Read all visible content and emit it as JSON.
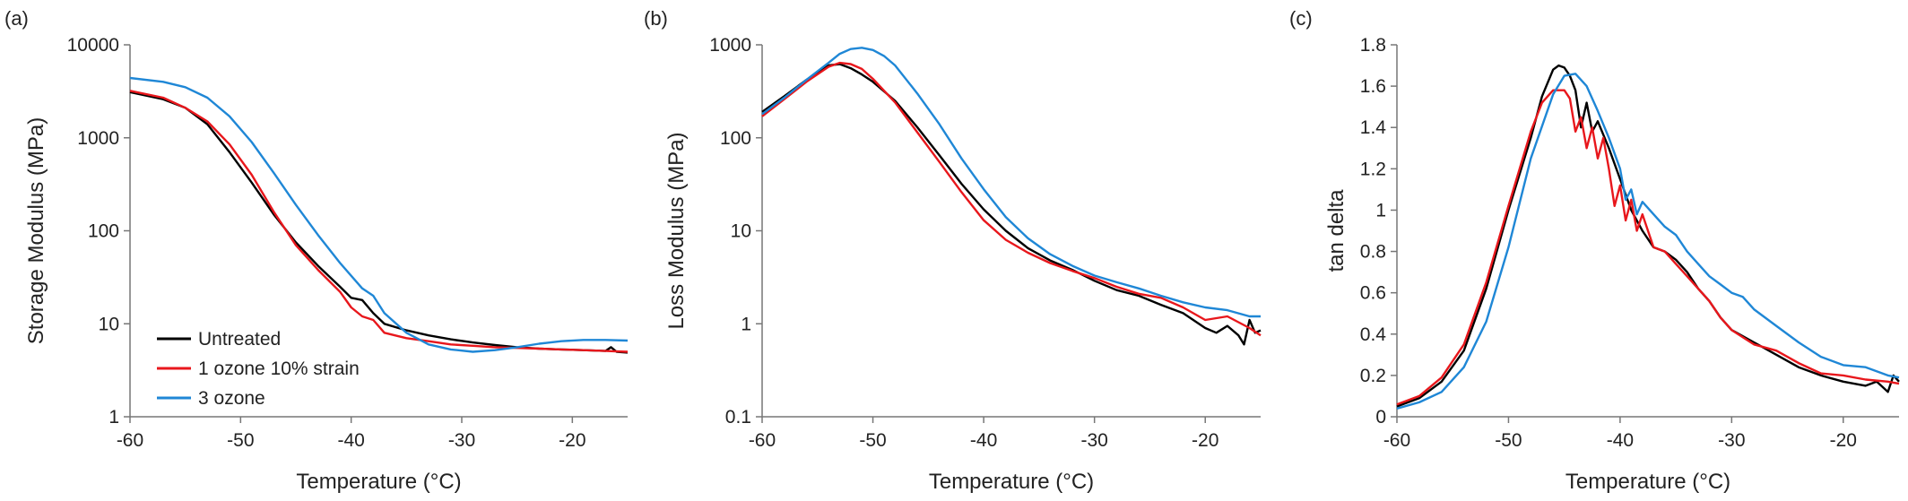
{
  "colors": {
    "Untreated": "#000000",
    "1 ozone 10% strain": "#e8171c",
    "3 ozone": "#1f87d6"
  },
  "chart_data": [
    {
      "type": "line",
      "panel_label": "(a)",
      "xlabel": "Temperature (°C)",
      "ylabel": "Storage Modulus (MPa)",
      "xlim": [
        -60,
        -15
      ],
      "ylim": [
        1,
        10000
      ],
      "yscale": "log",
      "xticks": [
        -60,
        -50,
        -40,
        -30,
        -20
      ],
      "yticks": [
        1,
        10,
        100,
        1000,
        10000
      ],
      "grid": false,
      "legend": {
        "placement": "bottom-left",
        "entries": [
          "Untreated",
          "1 ozone 10% strain",
          "3 ozone"
        ]
      },
      "series": [
        {
          "name": "Untreated",
          "x": [
            -60,
            -57,
            -55,
            -53,
            -51,
            -49,
            -47,
            -45,
            -43,
            -41,
            -40,
            -39,
            -38,
            -37,
            -35,
            -33,
            -31,
            -29,
            -27,
            -25,
            -23,
            -21,
            -19,
            -17,
            -16.5,
            -16,
            -15
          ],
          "y": [
            3100,
            2600,
            2100,
            1400,
            700,
            330,
            150,
            75,
            42,
            25,
            19,
            18,
            13,
            10,
            8.5,
            7.5,
            6.8,
            6.3,
            5.9,
            5.6,
            5.4,
            5.3,
            5.2,
            5.1,
            5.6,
            5.0,
            4.9
          ]
        },
        {
          "name": "1 ozone 10% strain",
          "x": [
            -60,
            -57,
            -55,
            -53,
            -51,
            -49,
            -47,
            -45,
            -43,
            -41,
            -40,
            -39,
            -38,
            -37,
            -35,
            -33,
            -31,
            -29,
            -27,
            -25,
            -23,
            -21,
            -19,
            -17,
            -15
          ],
          "y": [
            3200,
            2700,
            2100,
            1500,
            850,
            400,
            160,
            70,
            38,
            22,
            15,
            12,
            11,
            8,
            7,
            6.5,
            6,
            5.8,
            5.6,
            5.5,
            5.4,
            5.3,
            5.2,
            5.1,
            5.0
          ]
        },
        {
          "name": "3 ozone",
          "x": [
            -60,
            -57,
            -55,
            -53,
            -51,
            -49,
            -47,
            -45,
            -43,
            -41,
            -39,
            -38,
            -37,
            -35,
            -33,
            -31,
            -29,
            -27,
            -25,
            -23,
            -21,
            -19,
            -17,
            -15
          ],
          "y": [
            4400,
            4000,
            3500,
            2700,
            1700,
            900,
            420,
            190,
            90,
            45,
            24,
            20,
            13,
            8,
            6,
            5.3,
            5.0,
            5.2,
            5.6,
            6.1,
            6.5,
            6.7,
            6.7,
            6.6
          ]
        }
      ]
    },
    {
      "type": "line",
      "panel_label": "(b)",
      "xlabel": "Temperature (°C)",
      "ylabel": "Loss Modulus (MPa)",
      "xlim": [
        -60,
        -15
      ],
      "ylim": [
        0.1,
        1000
      ],
      "yscale": "log",
      "xticks": [
        -60,
        -50,
        -40,
        -30,
        -20
      ],
      "yticks": [
        0.1,
        1,
        10,
        100,
        1000
      ],
      "grid": false,
      "series": [
        {
          "name": "Untreated",
          "x": [
            -60,
            -58,
            -56,
            -54,
            -53,
            -52,
            -51,
            -50,
            -48,
            -46,
            -44,
            -42,
            -40,
            -38,
            -36,
            -34,
            -32,
            -30,
            -28,
            -26,
            -24,
            -22,
            -20,
            -19,
            -18,
            -17,
            -16.5,
            -16,
            -15.5,
            -15
          ],
          "y": [
            190,
            280,
            420,
            600,
            620,
            560,
            480,
            400,
            250,
            130,
            65,
            32,
            17,
            10,
            6.5,
            4.8,
            3.8,
            2.9,
            2.3,
            2.0,
            1.6,
            1.3,
            0.9,
            0.8,
            0.95,
            0.75,
            0.6,
            1.1,
            0.8,
            0.85
          ]
        },
        {
          "name": "1 ozone 10% strain",
          "x": [
            -60,
            -58,
            -56,
            -54,
            -53,
            -52,
            -51,
            -50,
            -48,
            -46,
            -44,
            -42,
            -40,
            -38,
            -36,
            -34,
            -32,
            -30,
            -28,
            -26,
            -24,
            -22,
            -20,
            -18,
            -16,
            -15
          ],
          "y": [
            170,
            260,
            400,
            580,
            640,
            620,
            550,
            430,
            240,
            115,
            55,
            26,
            13,
            8,
            5.8,
            4.5,
            3.7,
            3.1,
            2.5,
            2.1,
            1.9,
            1.5,
            1.1,
            1.2,
            0.9,
            0.75
          ]
        },
        {
          "name": "3 ozone",
          "x": [
            -60,
            -58,
            -56,
            -54,
            -53,
            -52,
            -51,
            -50,
            -49,
            -48,
            -46,
            -44,
            -42,
            -40,
            -38,
            -36,
            -34,
            -32,
            -30,
            -28,
            -26,
            -24,
            -22,
            -20,
            -18,
            -16,
            -15
          ],
          "y": [
            180,
            270,
            420,
            640,
            800,
            900,
            930,
            880,
            760,
            600,
            300,
            140,
            60,
            28,
            14,
            8.3,
            5.6,
            4.2,
            3.3,
            2.8,
            2.4,
            2.0,
            1.7,
            1.5,
            1.4,
            1.2,
            1.2
          ]
        }
      ]
    },
    {
      "type": "line",
      "panel_label": "(c)",
      "xlabel": "Temperature (°C)",
      "ylabel": "tan delta",
      "xlim": [
        -60,
        -15
      ],
      "ylim": [
        0,
        1.8
      ],
      "yscale": "linear",
      "xticks": [
        -60,
        -50,
        -40,
        -30,
        -20
      ],
      "yticks": [
        0,
        0.2,
        0.4,
        0.6,
        0.8,
        1,
        1.2,
        1.4,
        1.6,
        1.8
      ],
      "ytick_labels": [
        "0",
        "0.2",
        "0.4",
        "0.6",
        "0.8",
        "1",
        "1.2",
        "1.4",
        "1.6",
        "1.8"
      ],
      "grid": false,
      "series": [
        {
          "name": "Untreated",
          "x": [
            -60,
            -58,
            -56,
            -54,
            -52,
            -50,
            -48,
            -47,
            -46,
            -45.5,
            -45,
            -44.5,
            -44,
            -43.5,
            -43,
            -42.5,
            -42,
            -41,
            -40,
            -39,
            -38,
            -37,
            -36,
            -35,
            -34,
            -33,
            -32,
            -31,
            -30,
            -28,
            -26,
            -24,
            -22,
            -20,
            -18,
            -17,
            -16,
            -15.5,
            -15
          ],
          "y": [
            0.05,
            0.09,
            0.17,
            0.32,
            0.62,
            1.0,
            1.35,
            1.55,
            1.68,
            1.7,
            1.69,
            1.65,
            1.58,
            1.4,
            1.52,
            1.38,
            1.43,
            1.3,
            1.15,
            1.0,
            0.9,
            0.82,
            0.8,
            0.76,
            0.7,
            0.62,
            0.56,
            0.48,
            0.42,
            0.36,
            0.3,
            0.24,
            0.2,
            0.17,
            0.15,
            0.17,
            0.12,
            0.2,
            0.17
          ]
        },
        {
          "name": "1 ozone 10% strain",
          "x": [
            -60,
            -58,
            -56,
            -54,
            -52,
            -50,
            -48,
            -47,
            -46,
            -45,
            -44.5,
            -44,
            -43.5,
            -43,
            -42.5,
            -42,
            -41.5,
            -41,
            -40.5,
            -40,
            -39.5,
            -39,
            -38.5,
            -38,
            -37,
            -36,
            -35,
            -34,
            -33,
            -32,
            -31,
            -30,
            -28,
            -26,
            -24,
            -22,
            -20,
            -18,
            -16,
            -15
          ],
          "y": [
            0.06,
            0.1,
            0.19,
            0.35,
            0.65,
            1.02,
            1.38,
            1.52,
            1.58,
            1.58,
            1.54,
            1.38,
            1.45,
            1.3,
            1.4,
            1.25,
            1.35,
            1.2,
            1.02,
            1.12,
            0.95,
            1.05,
            0.9,
            0.98,
            0.82,
            0.8,
            0.74,
            0.68,
            0.62,
            0.56,
            0.48,
            0.42,
            0.35,
            0.32,
            0.26,
            0.21,
            0.2,
            0.18,
            0.17,
            0.16
          ]
        },
        {
          "name": "3 ozone",
          "x": [
            -60,
            -58,
            -56,
            -54,
            -52,
            -50,
            -48,
            -46,
            -45,
            -44,
            -43,
            -42,
            -41,
            -40,
            -39.5,
            -39,
            -38.5,
            -38,
            -37,
            -36,
            -35,
            -34,
            -33,
            -32,
            -31,
            -30,
            -29,
            -28,
            -26,
            -24,
            -22,
            -20,
            -18,
            -16,
            -15
          ],
          "y": [
            0.04,
            0.07,
            0.12,
            0.24,
            0.46,
            0.82,
            1.25,
            1.56,
            1.65,
            1.66,
            1.6,
            1.48,
            1.35,
            1.2,
            1.05,
            1.1,
            0.98,
            1.04,
            0.98,
            0.92,
            0.88,
            0.8,
            0.74,
            0.68,
            0.64,
            0.6,
            0.58,
            0.52,
            0.44,
            0.36,
            0.29,
            0.25,
            0.24,
            0.2,
            0.19
          ]
        }
      ]
    }
  ]
}
